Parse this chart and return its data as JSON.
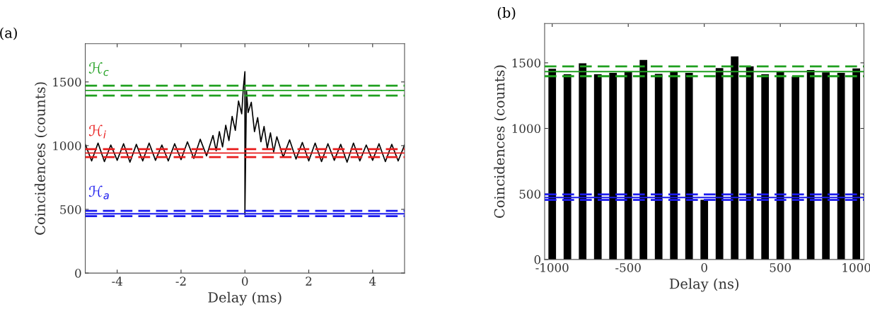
{
  "chart_data": [
    {
      "type": "line",
      "title": "(a)",
      "xlabel": "Delay (ms)",
      "ylabel": "Coincidences (counts)",
      "x": [
        -5,
        -4.8,
        -4.6,
        -4.4,
        -4.2,
        -4.0,
        -3.8,
        -3.6,
        -3.4,
        -3.2,
        -3.0,
        -2.8,
        -2.6,
        -2.4,
        -2.2,
        -2.0,
        -1.8,
        -1.6,
        -1.4,
        -1.2,
        -1.0,
        -0.9,
        -0.8,
        -0.7,
        -0.6,
        -0.5,
        -0.4,
        -0.3,
        -0.2,
        -0.1,
        -0.05,
        0,
        0,
        0.05,
        0.1,
        0.2,
        0.3,
        0.4,
        0.5,
        0.6,
        0.7,
        0.8,
        0.9,
        1.0,
        1.2,
        1.4,
        1.6,
        1.8,
        2.0,
        2.2,
        2.4,
        2.6,
        2.8,
        3.0,
        3.2,
        3.4,
        3.6,
        3.8,
        4.0,
        4.2,
        4.4,
        4.6,
        4.8,
        5.0
      ],
      "series": [
        {
          "color": "#000000",
          "values": [
            1010,
            880,
            1020,
            875,
            1005,
            885,
            1015,
            870,
            1010,
            880,
            1020,
            885,
            1005,
            880,
            1015,
            890,
            1030,
            900,
            1050,
            920,
            1080,
            960,
            1110,
            990,
            1160,
            1040,
            1230,
            1120,
            1350,
            1250,
            1450,
            1580,
            460,
            1430,
            1260,
            1340,
            1110,
            1220,
            1030,
            1150,
            980,
            1100,
            950,
            1070,
            910,
            1045,
            895,
            1025,
            880,
            1020,
            875,
            1015,
            885,
            1010,
            870,
            1020,
            880,
            1005,
            885,
            1015,
            875,
            1010,
            880,
            1005
          ]
        }
      ],
      "xlim": [
        -5,
        5
      ],
      "xticks": [
        -4,
        -2,
        0,
        2,
        4
      ],
      "ylim": [
        0,
        1800
      ],
      "yticks": [
        0,
        500,
        1000,
        1500
      ],
      "ref_lines": [
        {
          "axis": "y",
          "value": 1470,
          "color": "#20a020",
          "line_style": "dashed"
        },
        {
          "axis": "y",
          "value": 1433,
          "color": "#20a020",
          "line_style": "solid",
          "label": "ℋ$_{c}$"
        },
        {
          "axis": "y",
          "value": 1393,
          "color": "#20a020",
          "line_style": "dashed"
        },
        {
          "axis": "y",
          "value": 972,
          "color": "#e81c1c",
          "line_style": "dashed"
        },
        {
          "axis": "y",
          "value": 942,
          "color": "#e81c1c",
          "line_style": "solid",
          "label": "ℋ$_{i}$"
        },
        {
          "axis": "y",
          "value": 910,
          "color": "#e81c1c",
          "line_style": "dashed"
        },
        {
          "axis": "y",
          "value": 488,
          "color": "#1a1aee",
          "line_style": "dashed"
        },
        {
          "axis": "y",
          "value": 465,
          "color": "#1a1aee",
          "line_style": "solid",
          "label": "ℋ$_{a}$"
        },
        {
          "axis": "y",
          "value": 447,
          "color": "#1a1aee",
          "line_style": "dashed"
        }
      ]
    },
    {
      "type": "bar",
      "title": "(b)",
      "xlabel": "Delay (ns)",
      "ylabel": "Coincidences (counts)",
      "x": [
        -1000,
        -900,
        -800,
        -700,
        -600,
        -500,
        -400,
        -300,
        -200,
        -100,
        0,
        100,
        200,
        300,
        400,
        500,
        600,
        700,
        800,
        900,
        1000
      ],
      "series": [
        {
          "color": "#000000",
          "values": [
            1455,
            1413,
            1496,
            1413,
            1424,
            1431,
            1522,
            1416,
            1433,
            1424,
            455,
            1460,
            1549,
            1473,
            1413,
            1433,
            1395,
            1445,
            1427,
            1424,
            1458
          ]
        }
      ],
      "xlim": [
        -1050,
        1050
      ],
      "xticks": [
        -1000,
        -500,
        0,
        500,
        1000
      ],
      "ylim": [
        0,
        1800
      ],
      "yticks": [
        0,
        500,
        1000,
        1500
      ],
      "ref_lines": [
        {
          "axis": "y",
          "value": 1473,
          "color": "#20a020",
          "line_style": "dashed"
        },
        {
          "axis": "y",
          "value": 1433,
          "color": "#20a020",
          "line_style": "solid"
        },
        {
          "axis": "y",
          "value": 1398,
          "color": "#20a020",
          "line_style": "dashed"
        },
        {
          "axis": "y",
          "value": 496,
          "color": "#1a1aee",
          "line_style": "dashed"
        },
        {
          "axis": "y",
          "value": 473,
          "color": "#1a1aee",
          "line_style": "solid"
        },
        {
          "axis": "y",
          "value": 455,
          "color": "#1a1aee",
          "line_style": "dashed"
        }
      ]
    }
  ]
}
